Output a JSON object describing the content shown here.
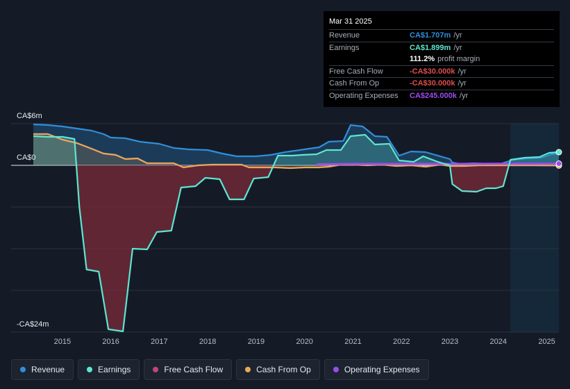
{
  "tooltip": {
    "date": "Mar 31 2025",
    "rows": [
      {
        "label": "Revenue",
        "value": "CA$1.707m",
        "unit": "/yr",
        "color": "#2f8fdb"
      },
      {
        "label": "Earnings",
        "value": "CA$1.899m",
        "unit": "/yr",
        "color": "#5ee6d0"
      },
      {
        "label": "",
        "value": "111.2%",
        "unit": "profit margin",
        "color": "#ffffff"
      },
      {
        "label": "Free Cash Flow",
        "value": "-CA$30.000k",
        "unit": "/yr",
        "color": "#e14c4c"
      },
      {
        "label": "Cash From Op",
        "value": "-CA$30.000k",
        "unit": "/yr",
        "color": "#e14c4c"
      },
      {
        "label": "Operating Expenses",
        "value": "CA$245.000k",
        "unit": "/yr",
        "color": "#9d4cf0"
      }
    ]
  },
  "legend": [
    {
      "label": "Revenue",
      "color": "#2f8fdb"
    },
    {
      "label": "Earnings",
      "color": "#5ee6d0"
    },
    {
      "label": "Free Cash Flow",
      "color": "#c2457a"
    },
    {
      "label": "Cash From Op",
      "color": "#e8a85a"
    },
    {
      "label": "Operating Expenses",
      "color": "#9d4cf0"
    }
  ],
  "chart_data": {
    "type": "area",
    "title": "",
    "y_tick_labels": [
      "CA$6m",
      "CA$0",
      "-CA$24m"
    ],
    "y_ticks": [
      6,
      0,
      -24
    ],
    "ylim": [
      -24,
      6
    ],
    "xlim": [
      2014.4,
      2025.25
    ],
    "x_tick_labels": [
      "2015",
      "2016",
      "2017",
      "2018",
      "2019",
      "2020",
      "2021",
      "2022",
      "2023",
      "2024",
      "2025"
    ],
    "x_ticks": [
      2015,
      2016,
      2017,
      2018,
      2019,
      2020,
      2021,
      2022,
      2023,
      2024,
      2025
    ],
    "forecast_start": 2024.25,
    "series": [
      {
        "name": "Revenue",
        "color": "#2f8fdb",
        "points": [
          [
            2014.4,
            5.9
          ],
          [
            2014.7,
            5.8
          ],
          [
            2015.0,
            5.6
          ],
          [
            2015.3,
            5.3
          ],
          [
            2015.6,
            5.0
          ],
          [
            2015.85,
            4.5
          ],
          [
            2016.0,
            4.0
          ],
          [
            2016.3,
            3.9
          ],
          [
            2016.6,
            3.4
          ],
          [
            2017.0,
            3.1
          ],
          [
            2017.3,
            2.5
          ],
          [
            2017.6,
            2.3
          ],
          [
            2018.0,
            2.2
          ],
          [
            2018.3,
            1.7
          ],
          [
            2018.6,
            1.3
          ],
          [
            2019.0,
            1.3
          ],
          [
            2019.3,
            1.5
          ],
          [
            2019.6,
            1.9
          ],
          [
            2020.0,
            2.3
          ],
          [
            2020.3,
            2.6
          ],
          [
            2020.5,
            3.4
          ],
          [
            2020.8,
            3.5
          ],
          [
            2020.95,
            5.8
          ],
          [
            2021.2,
            5.6
          ],
          [
            2021.45,
            4.2
          ],
          [
            2021.7,
            4.1
          ],
          [
            2021.95,
            1.4
          ],
          [
            2022.2,
            2.0
          ],
          [
            2022.5,
            1.9
          ],
          [
            2022.75,
            1.4
          ],
          [
            2023.0,
            0.9
          ],
          [
            2023.05,
            0.4
          ],
          [
            2023.2,
            0.2
          ],
          [
            2023.5,
            0.3
          ],
          [
            2023.8,
            0.2
          ],
          [
            2024.0,
            0.1
          ],
          [
            2024.3,
            0.8
          ],
          [
            2024.6,
            1.0
          ],
          [
            2024.9,
            1.1
          ],
          [
            2025.1,
            1.6
          ],
          [
            2025.25,
            1.707
          ]
        ]
      },
      {
        "name": "Earnings",
        "color": "#5ee6d0",
        "points": [
          [
            2014.4,
            4.2
          ],
          [
            2014.7,
            4.1
          ],
          [
            2015.0,
            4.1
          ],
          [
            2015.25,
            3.8
          ],
          [
            2015.35,
            -6.0
          ],
          [
            2015.5,
            -15.0
          ],
          [
            2015.75,
            -15.3
          ],
          [
            2015.95,
            -23.6
          ],
          [
            2016.25,
            -23.9
          ],
          [
            2016.45,
            -12.0
          ],
          [
            2016.75,
            -12.1
          ],
          [
            2016.95,
            -9.6
          ],
          [
            2017.25,
            -9.4
          ],
          [
            2017.45,
            -3.2
          ],
          [
            2017.75,
            -3.0
          ],
          [
            2017.95,
            -1.8
          ],
          [
            2018.25,
            -2.0
          ],
          [
            2018.45,
            -4.9
          ],
          [
            2018.75,
            -4.9
          ],
          [
            2018.95,
            -1.9
          ],
          [
            2019.25,
            -1.7
          ],
          [
            2019.45,
            1.4
          ],
          [
            2019.75,
            1.4
          ],
          [
            2019.95,
            1.5
          ],
          [
            2020.25,
            1.6
          ],
          [
            2020.45,
            2.2
          ],
          [
            2020.75,
            2.2
          ],
          [
            2020.95,
            4.2
          ],
          [
            2021.25,
            4.4
          ],
          [
            2021.45,
            3.0
          ],
          [
            2021.75,
            3.1
          ],
          [
            2021.95,
            0.7
          ],
          [
            2022.25,
            0.5
          ],
          [
            2022.45,
            1.3
          ],
          [
            2022.75,
            0.5
          ],
          [
            2023.0,
            0.0
          ],
          [
            2023.05,
            -2.7
          ],
          [
            2023.25,
            -3.7
          ],
          [
            2023.55,
            -3.8
          ],
          [
            2023.75,
            -3.3
          ],
          [
            2023.95,
            -3.3
          ],
          [
            2024.1,
            -3.0
          ],
          [
            2024.25,
            0.8
          ],
          [
            2024.55,
            1.1
          ],
          [
            2024.85,
            1.2
          ],
          [
            2025.05,
            1.8
          ],
          [
            2025.25,
            1.899
          ]
        ]
      },
      {
        "name": "Free Cash Flow",
        "color": "#c2457a",
        "points": [
          [
            2014.4,
            4.5
          ],
          [
            2014.7,
            4.5
          ],
          [
            2015.0,
            3.7
          ],
          [
            2015.3,
            3.2
          ],
          [
            2015.6,
            2.4
          ],
          [
            2015.85,
            1.7
          ],
          [
            2016.1,
            1.5
          ],
          [
            2016.3,
            0.9
          ],
          [
            2016.55,
            1.0
          ],
          [
            2016.75,
            0.3
          ],
          [
            2017.0,
            0.3
          ],
          [
            2017.3,
            0.3
          ],
          [
            2017.5,
            -0.3
          ],
          [
            2017.8,
            0.0
          ],
          [
            2018.1,
            0.1
          ],
          [
            2018.4,
            0.1
          ],
          [
            2018.7,
            0.1
          ],
          [
            2018.85,
            -0.3
          ],
          [
            2019.1,
            -0.3
          ],
          [
            2019.4,
            -0.3
          ],
          [
            2019.7,
            -0.4
          ],
          [
            2020.0,
            -0.3
          ],
          [
            2020.3,
            -0.3
          ],
          [
            2020.5,
            -0.2
          ],
          [
            2020.75,
            0.1
          ],
          [
            2021.0,
            0.1
          ],
          [
            2021.3,
            0.0
          ],
          [
            2021.6,
            0.1
          ],
          [
            2021.9,
            -0.1
          ],
          [
            2022.2,
            0.0
          ],
          [
            2022.5,
            -0.2
          ],
          [
            2022.8,
            0.1
          ],
          [
            2023.0,
            -0.1
          ],
          [
            2023.3,
            -0.1
          ],
          [
            2023.6,
            0.0
          ],
          [
            2023.9,
            0.0
          ],
          [
            2024.3,
            0.0
          ],
          [
            2024.7,
            0.0
          ],
          [
            2025.25,
            -0.03
          ]
        ]
      },
      {
        "name": "Cash From Op",
        "color": "#e8a85a",
        "points": [
          [
            2014.4,
            4.5
          ],
          [
            2014.7,
            4.5
          ],
          [
            2015.0,
            3.7
          ],
          [
            2015.3,
            3.2
          ],
          [
            2015.6,
            2.4
          ],
          [
            2015.85,
            1.7
          ],
          [
            2016.1,
            1.5
          ],
          [
            2016.3,
            0.9
          ],
          [
            2016.55,
            1.0
          ],
          [
            2016.75,
            0.3
          ],
          [
            2017.0,
            0.3
          ],
          [
            2017.3,
            0.3
          ],
          [
            2017.5,
            -0.3
          ],
          [
            2017.8,
            0.0
          ],
          [
            2018.1,
            0.1
          ],
          [
            2018.4,
            0.1
          ],
          [
            2018.7,
            0.1
          ],
          [
            2018.85,
            -0.3
          ],
          [
            2019.1,
            -0.3
          ],
          [
            2019.4,
            -0.3
          ],
          [
            2019.7,
            -0.4
          ],
          [
            2020.0,
            -0.3
          ],
          [
            2020.3,
            -0.3
          ],
          [
            2020.5,
            -0.2
          ],
          [
            2020.75,
            0.1
          ],
          [
            2021.0,
            0.1
          ],
          [
            2021.3,
            0.0
          ],
          [
            2021.6,
            0.1
          ],
          [
            2021.9,
            -0.1
          ],
          [
            2022.2,
            0.0
          ],
          [
            2022.5,
            -0.2
          ],
          [
            2022.8,
            0.1
          ],
          [
            2023.0,
            -0.1
          ],
          [
            2023.3,
            -0.1
          ],
          [
            2023.6,
            0.0
          ],
          [
            2023.9,
            0.0
          ],
          [
            2024.3,
            0.0
          ],
          [
            2024.7,
            0.0
          ],
          [
            2025.25,
            -0.03
          ]
        ]
      },
      {
        "name": "Operating Expenses",
        "color": "#9d4cf0",
        "points": [
          [
            2020.25,
            0.15
          ],
          [
            2021.0,
            0.2
          ],
          [
            2022.0,
            0.2
          ],
          [
            2023.0,
            0.2
          ],
          [
            2024.0,
            0.22
          ],
          [
            2025.25,
            0.245
          ]
        ]
      }
    ]
  }
}
